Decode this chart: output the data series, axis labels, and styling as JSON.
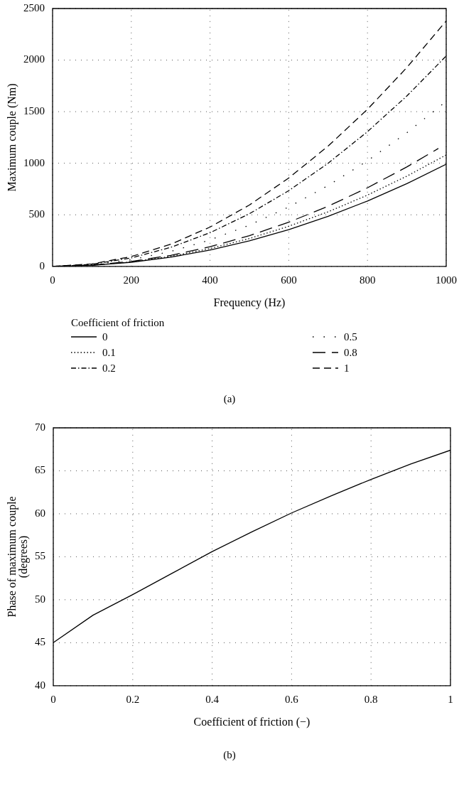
{
  "chart_data": [
    {
      "type": "line",
      "xlabel": "Frequency (Hz)",
      "ylabel": "Maximum couple (Nm)",
      "legend_title": "Coefficient of friction",
      "legend": "bottom",
      "grid": true,
      "x": [
        0,
        100,
        200,
        300,
        400,
        500,
        600,
        700,
        800,
        900,
        1000
      ],
      "xlim": [
        0,
        1000
      ],
      "xticks": [
        0,
        200,
        400,
        600,
        800,
        1000
      ],
      "ylim": [
        0,
        2500
      ],
      "yticks": [
        0,
        500,
        1000,
        1500,
        2000,
        2500
      ],
      "series": [
        {
          "name": "0",
          "color": "#000000",
          "line_style": "solid",
          "values": [
            0,
            10,
            40,
            89,
            158,
            248,
            356,
            485,
            634,
            802,
            990
          ]
        },
        {
          "name": "0.1",
          "color": "#000000",
          "line_style": "dotted",
          "values": [
            0,
            11,
            43,
            97,
            173,
            270,
            389,
            529,
            691,
            875,
            1080
          ]
        },
        {
          "name": "0.2",
          "color": "#000000",
          "line_style": "dashdot",
          "values": [
            0,
            20,
            82,
            184,
            326,
            510,
            734,
            1000,
            1306,
            1652,
            2040
          ]
        },
        {
          "name": "0.5",
          "color": "#000000",
          "line_style": "loosely_dotted",
          "values": [
            0,
            16,
            64,
            144,
            256,
            400,
            576,
            784,
            1024,
            1296,
            1600
          ]
        },
        {
          "name": "0.8",
          "color": "#000000",
          "line_style": "long_dashed",
          "x": [
            0,
            100,
            200,
            300,
            400,
            500,
            600,
            700,
            800,
            900,
            980
          ],
          "values": [
            0,
            12,
            48,
            107,
            190,
            298,
            428,
            583,
            762,
            964,
            1143
          ]
        },
        {
          "name": "1",
          "color": "#000000",
          "line_style": "dashed",
          "values": [
            0,
            24,
            95,
            214,
            381,
            595,
            857,
            1166,
            1523,
            1928,
            2380
          ]
        }
      ],
      "annotations": [
        "(a)"
      ]
    },
    {
      "type": "line",
      "xlabel": "Coefficient of friction (−)",
      "ylabel": "Phase of maximum couple\n(degrees)",
      "grid": true,
      "legend": false,
      "x": [
        0,
        0.1,
        0.2,
        0.3,
        0.4,
        0.5,
        0.6,
        0.7,
        0.8,
        0.9,
        1
      ],
      "xlim": [
        0,
        1
      ],
      "xticks": [
        0,
        0.2,
        0.4,
        0.6,
        0.8,
        1
      ],
      "ylim": [
        40,
        70
      ],
      "yticks": [
        40,
        45,
        50,
        55,
        60,
        65,
        70
      ],
      "series": [
        {
          "color": "#000000",
          "line_style": "solid",
          "values": [
            45,
            48.2,
            50.6,
            53.1,
            55.6,
            57.9,
            60.1,
            62.1,
            64,
            65.8,
            67.4
          ]
        }
      ],
      "annotations": [
        "(b)"
      ]
    }
  ]
}
